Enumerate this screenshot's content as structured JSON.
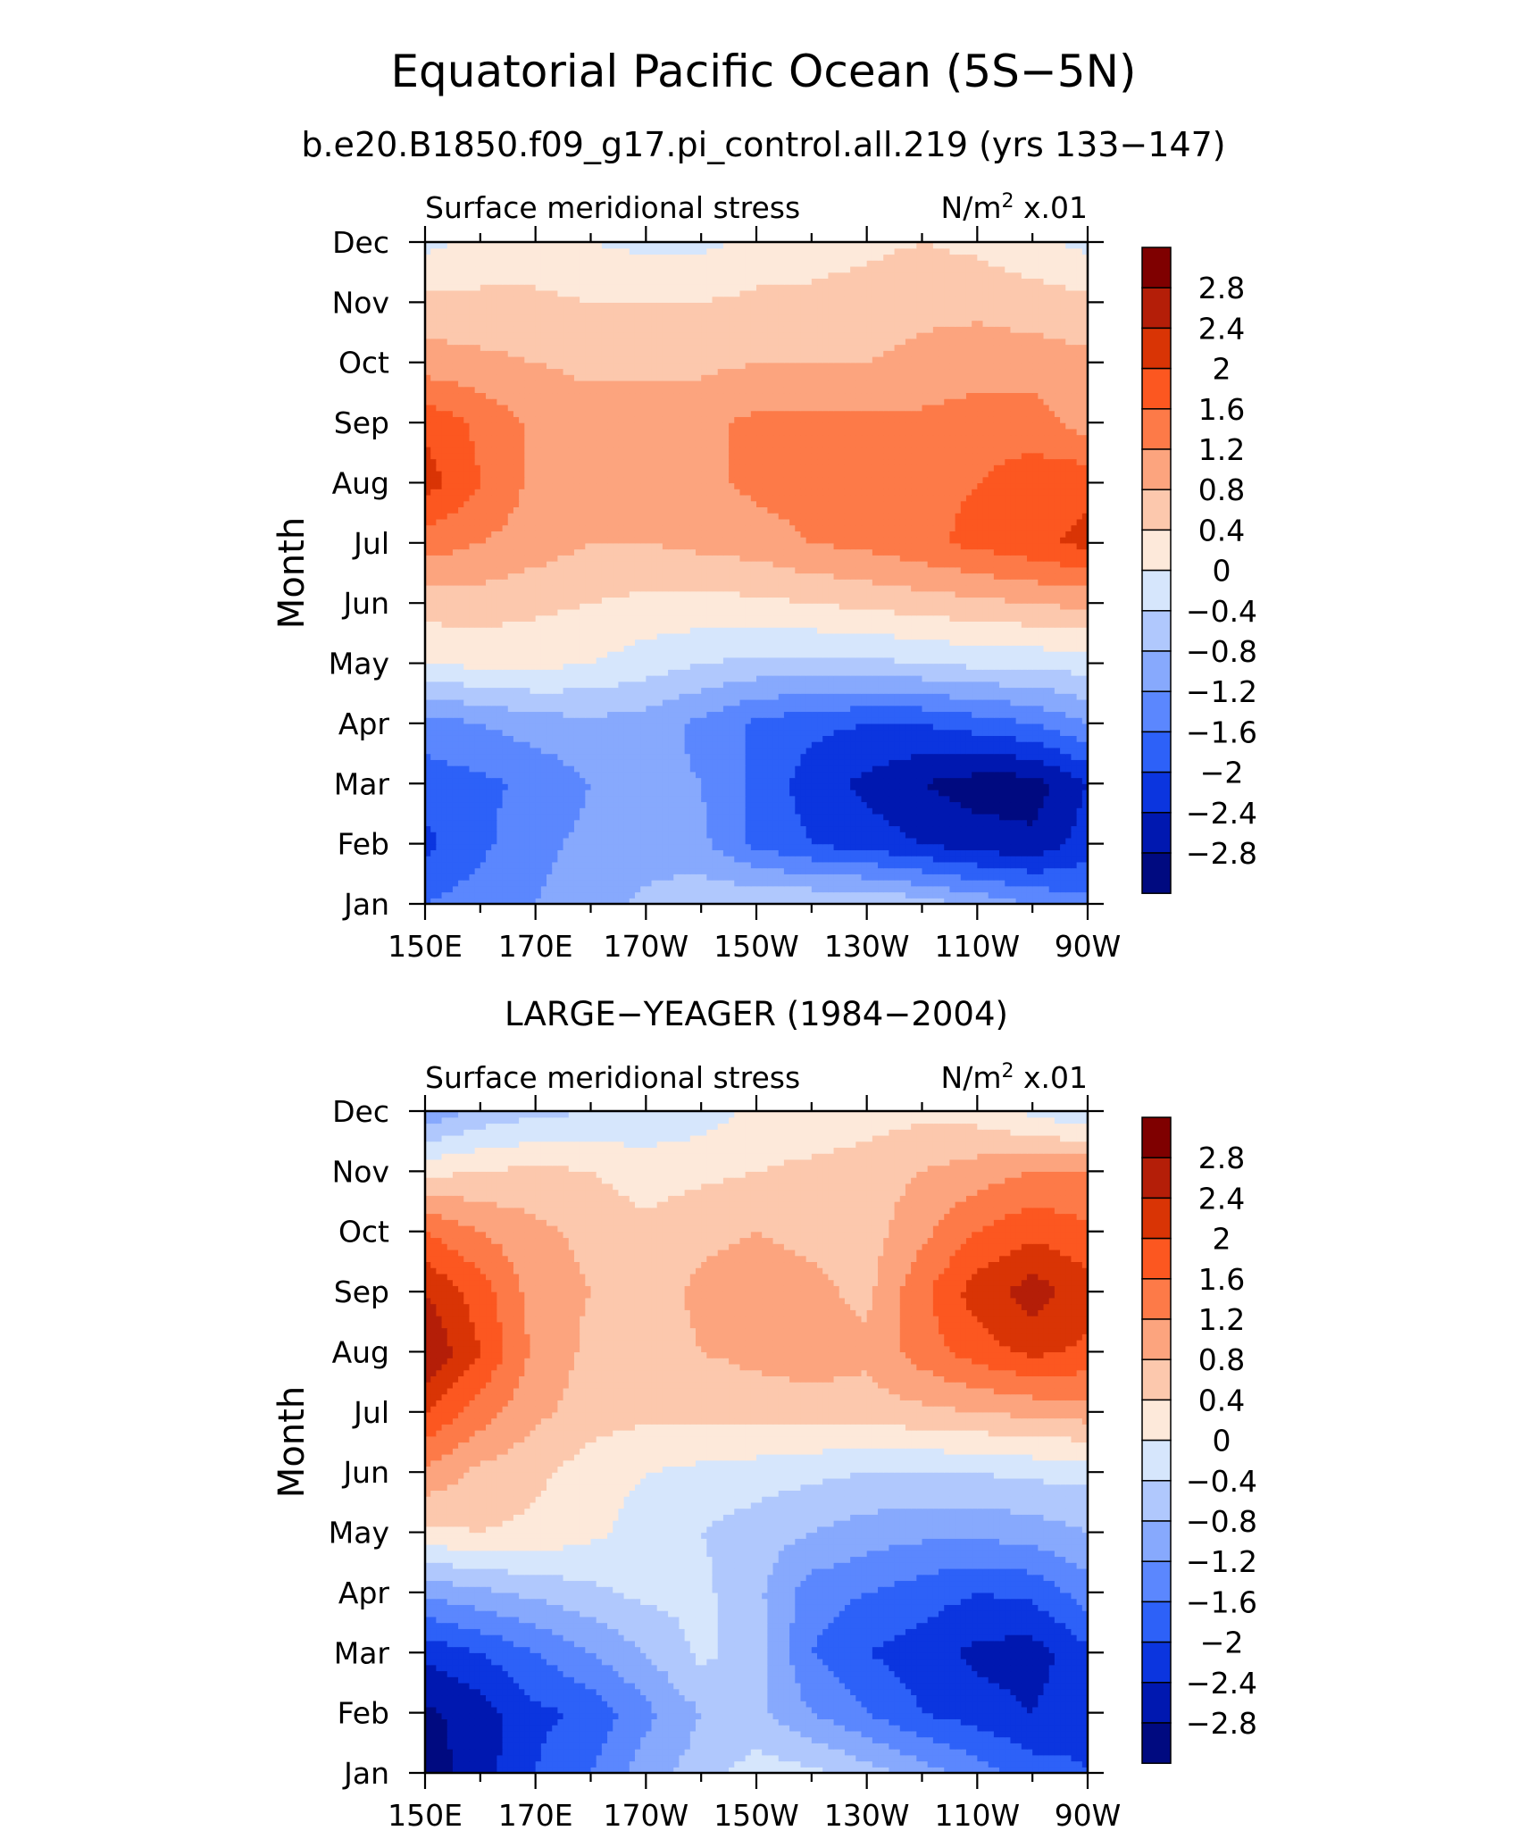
{
  "figure": {
    "title": "Equatorial Pacific Ocean (5S−5N)",
    "subtitle": "b.e20.B1850.f09_g17.pi_control.all.219 (yrs 133−147)"
  },
  "chart_data": [
    {
      "type": "heatmap",
      "panel_title": "",
      "left_label": "Surface meridional stress",
      "right_label_base": "N/m",
      "right_label_sup": "2",
      "right_label_tail": " x.01",
      "ylabel": "Month",
      "x_ticks": [
        "150E",
        "170E",
        "170W",
        "150W",
        "130W",
        "110W",
        "90W"
      ],
      "x_lon": [
        150,
        170,
        190,
        210,
        230,
        250,
        270
      ],
      "xlim": [
        150,
        270
      ],
      "y_ticks": [
        "Jan",
        "Feb",
        "Mar",
        "Apr",
        "May",
        "Jun",
        "Jul",
        "Aug",
        "Sep",
        "Oct",
        "Nov",
        "Dec"
      ],
      "ylim": [
        1,
        12
      ],
      "color_levels": [
        -2.8,
        -2.4,
        -2,
        -1.6,
        -1.2,
        -0.8,
        -0.4,
        0,
        0.4,
        0.8,
        1.2,
        1.6,
        2,
        2.4,
        2.8
      ],
      "grid_lon": [
        150,
        160,
        170,
        180,
        190,
        200,
        210,
        220,
        230,
        240,
        250,
        260,
        270
      ],
      "values": [
        [
          -1.6,
          -1.4,
          -1.2,
          -1.0,
          -0.7,
          -0.5,
          -0.4,
          -0.4,
          -0.4,
          -0.6,
          -0.9,
          -1.2,
          -1.5
        ],
        [
          -2.1,
          -1.7,
          -1.3,
          -1.1,
          -1.0,
          -1.1,
          -1.7,
          -2.0,
          -2.2,
          -2.4,
          -2.6,
          -2.7,
          -2.2
        ],
        [
          -1.8,
          -1.7,
          -1.5,
          -1.2,
          -1.1,
          -1.2,
          -1.7,
          -2.2,
          -2.5,
          -2.8,
          -3.0,
          -3.0,
          -2.4
        ],
        [
          -1.4,
          -1.2,
          -1.0,
          -0.9,
          -1.0,
          -1.3,
          -1.7,
          -1.9,
          -2.0,
          -2.0,
          -1.8,
          -1.6,
          -1.2
        ],
        [
          0.0,
          0.1,
          0.1,
          0.0,
          -0.2,
          -0.4,
          -0.5,
          -0.5,
          -0.5,
          -0.4,
          -0.3,
          -0.3,
          -0.2
        ],
        [
          0.6,
          0.6,
          0.5,
          0.4,
          0.3,
          0.3,
          0.3,
          0.4,
          0.5,
          0.6,
          0.7,
          0.8,
          0.9
        ],
        [
          1.4,
          1.2,
          1.0,
          0.8,
          0.8,
          0.9,
          1.0,
          1.2,
          1.3,
          1.5,
          1.7,
          1.9,
          2.1
        ],
        [
          2.2,
          1.6,
          1.1,
          1.0,
          1.0,
          1.1,
          1.3,
          1.4,
          1.4,
          1.5,
          1.6,
          1.8,
          1.9
        ],
        [
          1.9,
          1.5,
          1.1,
          1.0,
          1.0,
          1.1,
          1.3,
          1.3,
          1.3,
          1.3,
          1.4,
          1.4,
          1.0
        ],
        [
          1.0,
          0.9,
          0.8,
          0.7,
          0.7,
          0.7,
          0.8,
          0.8,
          0.8,
          0.9,
          1.0,
          1.0,
          0.9
        ],
        [
          0.5,
          0.5,
          0.5,
          0.4,
          0.4,
          0.4,
          0.5,
          0.5,
          0.6,
          0.7,
          0.7,
          0.6,
          0.5
        ],
        [
          -0.1,
          0.1,
          0.1,
          0.0,
          -0.1,
          -0.1,
          0.1,
          0.2,
          0.3,
          0.4,
          0.3,
          0.1,
          -0.1
        ]
      ]
    },
    {
      "type": "heatmap",
      "panel_title": "LARGE−YEAGER (1984−2004)",
      "left_label": "Surface meridional stress",
      "right_label_base": "N/m",
      "right_label_sup": "2",
      "right_label_tail": " x.01",
      "ylabel": "Month",
      "x_ticks": [
        "150E",
        "170E",
        "170W",
        "150W",
        "130W",
        "110W",
        "90W"
      ],
      "x_lon": [
        150,
        170,
        190,
        210,
        230,
        250,
        270
      ],
      "xlim": [
        150,
        270
      ],
      "y_ticks": [
        "Jan",
        "Feb",
        "Mar",
        "Apr",
        "May",
        "Jun",
        "Jul",
        "Aug",
        "Sep",
        "Oct",
        "Nov",
        "Dec"
      ],
      "ylim": [
        1,
        12
      ],
      "color_levels": [
        -2.8,
        -2.4,
        -2,
        -1.6,
        -1.2,
        -0.8,
        -0.4,
        0,
        0.4,
        0.8,
        1.2,
        1.6,
        2,
        2.4,
        2.8
      ],
      "grid_lon": [
        150,
        160,
        170,
        180,
        190,
        200,
        210,
        220,
        230,
        240,
        250,
        260,
        270
      ],
      "values": [
        [
          -3.0,
          -2.6,
          -2.0,
          -1.6,
          -1.0,
          -0.6,
          -0.2,
          -0.3,
          -0.6,
          -1.0,
          -1.4,
          -1.8,
          -2.0
        ],
        [
          -2.9,
          -2.6,
          -2.1,
          -1.9,
          -1.3,
          -0.8,
          -0.7,
          -1.2,
          -1.6,
          -2.0,
          -2.2,
          -2.4,
          -2.1
        ],
        [
          -2.3,
          -2.0,
          -1.6,
          -1.2,
          -0.8,
          -0.3,
          -0.6,
          -1.6,
          -2.0,
          -2.2,
          -2.5,
          -2.6,
          -2.1
        ],
        [
          -1.1,
          -0.9,
          -0.7,
          -0.5,
          -0.3,
          -0.3,
          -0.7,
          -1.4,
          -1.6,
          -1.8,
          -2.0,
          -1.9,
          -1.4
        ],
        [
          0.3,
          0.4,
          0.3,
          0.1,
          -0.2,
          -0.4,
          -0.6,
          -0.8,
          -1.0,
          -1.1,
          -1.1,
          -1.0,
          -0.8
        ],
        [
          1.1,
          0.7,
          0.5,
          0.2,
          0.0,
          -0.1,
          -0.2,
          -0.3,
          -0.4,
          -0.4,
          -0.4,
          -0.3,
          -0.3
        ],
        [
          2.0,
          1.4,
          0.9,
          0.6,
          0.5,
          0.5,
          0.6,
          0.6,
          0.6,
          0.7,
          0.8,
          0.9,
          1.0
        ],
        [
          2.8,
          2.0,
          1.1,
          0.7,
          0.6,
          0.8,
          0.9,
          1.0,
          0.9,
          1.4,
          1.8,
          2.1,
          1.9
        ],
        [
          2.4,
          1.8,
          1.0,
          0.8,
          0.6,
          0.9,
          1.0,
          0.9,
          0.7,
          1.5,
          2.2,
          2.6,
          2.2
        ],
        [
          1.6,
          1.2,
          0.9,
          0.7,
          0.5,
          0.7,
          0.8,
          0.7,
          0.6,
          1.1,
          1.6,
          1.9,
          1.7
        ],
        [
          0.3,
          0.4,
          0.5,
          0.4,
          0.2,
          0.3,
          0.4,
          0.5,
          0.6,
          0.8,
          1.0,
          1.2,
          1.2
        ],
        [
          -1.1,
          -0.7,
          -0.5,
          -0.4,
          -0.3,
          -0.2,
          0.1,
          0.1,
          0.2,
          0.3,
          0.2,
          -0.1,
          -0.4
        ]
      ]
    }
  ],
  "colorbar": {
    "labels": [
      "2.8",
      "2.4",
      "2",
      "1.6",
      "1.2",
      "0.8",
      "0.4",
      "0",
      "−0.4",
      "−0.8",
      "−1.2",
      "−1.6",
      "−2",
      "−2.4",
      "−2.8"
    ],
    "colors_high_to_low": [
      "#7f0000",
      "#b41e08",
      "#d93405",
      "#fc5720",
      "#fd7a48",
      "#fca47e",
      "#fcc8ad",
      "#fde9da",
      "#d6e6fc",
      "#b0c8fd",
      "#87a9fd",
      "#5b87fe",
      "#2d61f8",
      "#0b35df",
      "#0018b0",
      "#000a80"
    ]
  }
}
